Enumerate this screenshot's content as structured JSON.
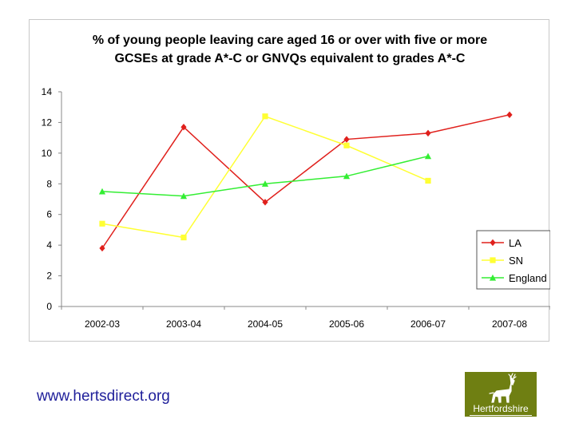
{
  "chart_data": {
    "type": "line",
    "title_lines": [
      "% of young people leaving care aged 16 or over with five or more",
      "GCSEs at grade A*-C or GNVQs equivalent to grades A*-C"
    ],
    "categories": [
      "2002-03",
      "2003-04",
      "2004-05",
      "2005-06",
      "2006-07",
      "2007-08"
    ],
    "ylim": [
      0,
      14
    ],
    "yticks": [
      0,
      2,
      4,
      6,
      8,
      10,
      12,
      14
    ],
    "grid": false,
    "legend_position": "bottom-right",
    "series": [
      {
        "name": "LA",
        "color": "#e0201c",
        "marker": "diamond",
        "values": [
          3.8,
          11.7,
          6.8,
          10.9,
          11.3,
          12.5
        ]
      },
      {
        "name": "SN",
        "color": "#ffff33",
        "marker": "square",
        "values": [
          5.4,
          4.5,
          12.4,
          10.5,
          8.2,
          null
        ]
      },
      {
        "name": "England",
        "color": "#33ee33",
        "marker": "triangle",
        "values": [
          7.5,
          7.2,
          8.0,
          8.5,
          9.8,
          null
        ]
      }
    ]
  },
  "footer": {
    "url": "www.hertsdirect.org"
  },
  "logo": {
    "text": "Hertfordshire",
    "icon": "stag-icon"
  }
}
